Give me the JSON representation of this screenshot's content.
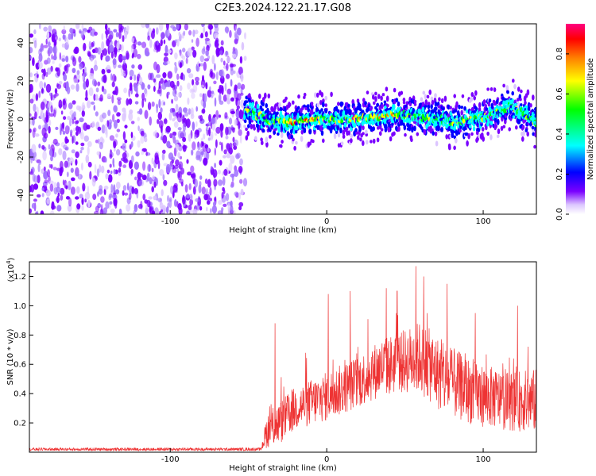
{
  "title": "C2E3.2024.122.21.17.G08",
  "chart_data": [
    {
      "type": "heatmap",
      "xlabel": "Height of straight line (km)",
      "ylabel": "Frequency (Hz)",
      "xlim": [
        -190,
        134
      ],
      "ylim": [
        -50,
        50
      ],
      "x_ticks": [
        -100,
        0,
        100
      ],
      "x_tick_labels": [
        "-100",
        "0",
        "100"
      ],
      "y_ticks": [
        -40,
        -20,
        0,
        20,
        40
      ],
      "y_tick_labels": [
        "-40",
        "-20",
        "0",
        "20",
        "40"
      ],
      "noise_region": {
        "x_range": [
          -190,
          -52
        ],
        "y_range": [
          -50,
          50
        ]
      },
      "signal_band": {
        "x_range": [
          -52,
          134
        ],
        "center_frequency": [
          {
            "x": -50,
            "y": 4
          },
          {
            "x": -45,
            "y": 2
          },
          {
            "x": -35,
            "y": -1
          },
          {
            "x": -20,
            "y": -2
          },
          {
            "x": -10,
            "y": 0
          },
          {
            "x": 0,
            "y": 0
          },
          {
            "x": 10,
            "y": 0
          },
          {
            "x": 20,
            "y": 0
          },
          {
            "x": 30,
            "y": 1
          },
          {
            "x": 40,
            "y": 2
          },
          {
            "x": 50,
            "y": 2
          },
          {
            "x": 60,
            "y": 1
          },
          {
            "x": 70,
            "y": 0
          },
          {
            "x": 80,
            "y": -2
          },
          {
            "x": 90,
            "y": -1
          },
          {
            "x": 100,
            "y": 1
          },
          {
            "x": 110,
            "y": 4
          },
          {
            "x": 118,
            "y": 7
          },
          {
            "x": 125,
            "y": 3
          },
          {
            "x": 134,
            "y": -2
          }
        ],
        "peak_amplitude_regions": [
          {
            "x_range": [
              -25,
              -5
            ],
            "amplitude": 0.85
          },
          {
            "x_range": [
              15,
              45
            ],
            "amplitude": 0.9
          }
        ]
      },
      "colorbar": {
        "label": "Normalized spectral amplitude",
        "range": [
          0,
          0.95
        ],
        "ticks": [
          0.0,
          0.2,
          0.4,
          0.6,
          0.8
        ],
        "tick_labels": [
          "0.0",
          "0.2",
          "0.4",
          "0.6",
          "0.8"
        ],
        "colors": [
          "#ffffff",
          "#dcc6ff",
          "#7a00ff",
          "#0000ff",
          "#00ffff",
          "#00ff00",
          "#ffff00",
          "#ff8000",
          "#ff0000",
          "#ff0080"
        ]
      }
    },
    {
      "type": "line",
      "xlabel": "Height of straight line (km)",
      "ylabel": "SNR (10 * v/v)",
      "y_multiplier_label": "(x10",
      "y_multiplier_exponent": "4",
      "xlim": [
        -190,
        134
      ],
      "ylim": [
        0,
        1.3
      ],
      "x_ticks": [
        -100,
        0,
        100
      ],
      "x_tick_labels": [
        "-100",
        "0",
        "100"
      ],
      "y_ticks": [
        0.2,
        0.4,
        0.6,
        0.8,
        1.0,
        1.2
      ],
      "y_tick_labels": [
        "0.2",
        "0.4",
        "0.6",
        "0.8",
        "1.0",
        "1.2"
      ],
      "series": [
        {
          "color": "#ee3333",
          "envelope": [
            {
              "x": -190,
              "base": 0.02,
              "noise": 0.01
            },
            {
              "x": -42,
              "base": 0.02,
              "noise": 0.01
            },
            {
              "x": -38,
              "base": 0.15,
              "noise": 0.12
            },
            {
              "x": -30,
              "base": 0.2,
              "noise": 0.15
            },
            {
              "x": -20,
              "base": 0.3,
              "noise": 0.15
            },
            {
              "x": 0,
              "base": 0.38,
              "noise": 0.17
            },
            {
              "x": 20,
              "base": 0.48,
              "noise": 0.18
            },
            {
              "x": 35,
              "base": 0.58,
              "noise": 0.2
            },
            {
              "x": 50,
              "base": 0.62,
              "noise": 0.22
            },
            {
              "x": 60,
              "base": 0.65,
              "noise": 0.25
            },
            {
              "x": 75,
              "base": 0.5,
              "noise": 0.25
            },
            {
              "x": 95,
              "base": 0.4,
              "noise": 0.22
            },
            {
              "x": 115,
              "base": 0.35,
              "noise": 0.2
            },
            {
              "x": 134,
              "base": 0.35,
              "noise": 0.22
            }
          ],
          "spikes": [
            {
              "x": -33,
              "y": 0.88
            },
            {
              "x": 1,
              "y": 1.08
            },
            {
              "x": 15,
              "y": 1.1
            },
            {
              "x": 38,
              "y": 1.12
            },
            {
              "x": 45,
              "y": 1.1
            },
            {
              "x": 57,
              "y": 1.27
            },
            {
              "x": 62,
              "y": 1.2
            },
            {
              "x": 77,
              "y": 1.15
            },
            {
              "x": 95,
              "y": 0.95
            },
            {
              "x": 122,
              "y": 1.0
            }
          ]
        }
      ]
    }
  ]
}
